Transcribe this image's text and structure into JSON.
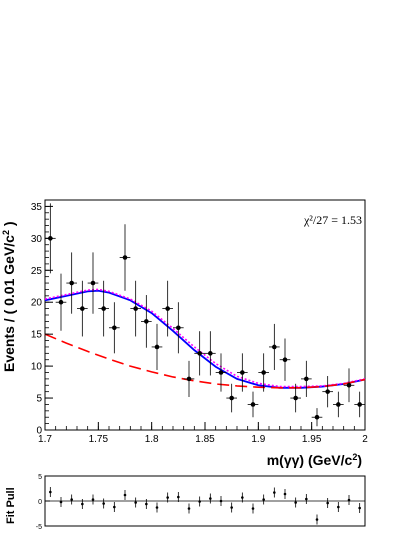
{
  "chart_data": [
    {
      "type": "scatter",
      "ylabel": "Events / ( 0.01 GeV/c",
      "ylabel_sup": "2",
      "ylabel_tail": " )",
      "xlabel": "m(γγ) (GeV/c",
      "xlabel_sup": "2",
      "xlabel_tail": ")",
      "annotation": "χ²/27 = 1.53",
      "xlim": [
        1.7,
        2.0
      ],
      "ylim": [
        0,
        36
      ],
      "x_ticks": [
        "1.7",
        "1.75",
        "1.8",
        "1.85",
        "1.9",
        "1.95",
        "2"
      ],
      "y_ticks": [
        "0",
        "5",
        "10",
        "15",
        "20",
        "25",
        "30",
        "35"
      ],
      "x_tick_values": [
        1.7,
        1.75,
        1.8,
        1.85,
        1.9,
        1.95,
        2.0
      ],
      "y_tick_values": [
        0,
        5,
        10,
        15,
        20,
        25,
        30,
        35
      ],
      "points": {
        "x": [
          1.705,
          1.715,
          1.725,
          1.735,
          1.745,
          1.755,
          1.765,
          1.775,
          1.785,
          1.795,
          1.805,
          1.815,
          1.825,
          1.835,
          1.845,
          1.855,
          1.865,
          1.875,
          1.885,
          1.895,
          1.905,
          1.915,
          1.925,
          1.935,
          1.945,
          1.955,
          1.965,
          1.975,
          1.985,
          1.995
        ],
        "y": [
          30,
          20,
          23,
          19,
          23,
          19,
          16,
          27,
          19,
          17,
          13,
          19,
          16,
          8,
          12,
          12,
          9,
          5,
          9,
          4,
          9,
          13,
          11,
          5,
          8,
          2,
          6,
          4,
          7,
          4
        ]
      },
      "curves": [
        {
          "style": "solid",
          "color": "#0000ff",
          "x": [
            1.7,
            1.72,
            1.74,
            1.75,
            1.76,
            1.78,
            1.8,
            1.82,
            1.84,
            1.86,
            1.88,
            1.9,
            1.92,
            1.94,
            1.96,
            1.98,
            2.0
          ],
          "y": [
            20.3,
            21.0,
            21.7,
            21.8,
            21.5,
            20.3,
            18.3,
            15.5,
            12.5,
            9.9,
            8.0,
            7.0,
            6.6,
            6.6,
            6.8,
            7.2,
            7.9
          ]
        },
        {
          "style": "dotted",
          "color": "#ff00ff",
          "x": [
            1.7,
            1.72,
            1.74,
            1.75,
            1.76,
            1.78,
            1.8,
            1.82,
            1.84,
            1.86,
            1.88,
            1.9,
            1.92,
            1.94,
            1.96,
            1.98,
            2.0
          ],
          "y": [
            20.5,
            21.2,
            21.9,
            22.0,
            21.7,
            20.5,
            18.6,
            15.9,
            13.0,
            10.4,
            8.4,
            7.3,
            6.8,
            6.8,
            6.9,
            7.3,
            8.0
          ]
        },
        {
          "style": "dashed",
          "color": "#ff0000",
          "x": [
            1.7,
            1.72,
            1.74,
            1.76,
            1.78,
            1.8,
            1.82,
            1.84,
            1.86,
            1.88,
            1.9,
            1.92,
            1.94,
            1.96,
            1.98,
            2.0
          ],
          "y": [
            15.0,
            13.6,
            12.3,
            11.1,
            10.0,
            9.1,
            8.3,
            7.7,
            7.2,
            6.9,
            6.7,
            6.6,
            6.6,
            6.8,
            7.2,
            7.9
          ]
        }
      ]
    },
    {
      "type": "scatter",
      "ylabel": "Fit Pull",
      "xlim": [
        1.7,
        2.0
      ],
      "ylim": [
        -5,
        5
      ],
      "y_ticks": [
        "5",
        "0",
        "-5"
      ],
      "y_tick_values": [
        5,
        0,
        -5
      ],
      "points": {
        "x": [
          1.705,
          1.715,
          1.725,
          1.735,
          1.745,
          1.755,
          1.765,
          1.775,
          1.785,
          1.795,
          1.805,
          1.815,
          1.825,
          1.835,
          1.845,
          1.855,
          1.865,
          1.875,
          1.885,
          1.895,
          1.905,
          1.915,
          1.925,
          1.935,
          1.945,
          1.955,
          1.965,
          1.975,
          1.985,
          1.995
        ],
        "y": [
          1.8,
          -0.2,
          0.3,
          -0.6,
          0.3,
          -0.5,
          -1.2,
          1.2,
          -0.3,
          -0.6,
          -1.3,
          0.7,
          0.8,
          -1.5,
          -0.1,
          0.5,
          0.0,
          -1.3,
          0.7,
          -1.5,
          0.3,
          1.7,
          1.4,
          -0.3,
          0.4,
          -3.7,
          -0.4,
          -1.2,
          0.2,
          -1.4
        ]
      }
    }
  ]
}
